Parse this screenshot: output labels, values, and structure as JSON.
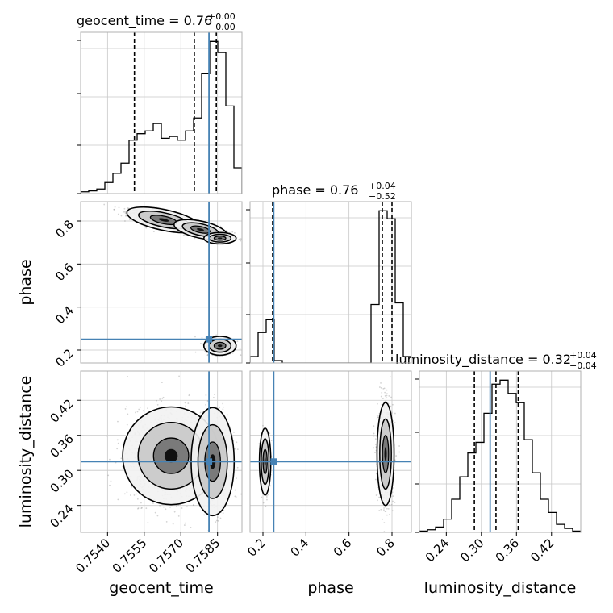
{
  "chart_data": {
    "type": "corner",
    "parameters": [
      "geocent_time",
      "phase",
      "luminosity_distance"
    ],
    "axis_labels": {
      "geocent_time": "geocent_time",
      "phase": "phase",
      "luminosity_distance": "luminosity_distance"
    },
    "colors": {
      "truth": "#4682b4",
      "hist": "#000000",
      "points": "#808080"
    },
    "titles": [
      {
        "param": "geocent_time",
        "text": "geocent_time = 0.76",
        "sup": "+0.00",
        "sub": "−0.00"
      },
      {
        "param": "phase",
        "text": "phase = 0.76",
        "sup": "+0.04",
        "sub": "−0.52"
      },
      {
        "param": "luminosity_distance",
        "text": "luminosity_distance = 0.32",
        "sup": "+0.04",
        "sub": "−0.04"
      }
    ],
    "ranges": {
      "geocent_time": [
        0.7529,
        0.7595
      ],
      "phase": [
        0.14,
        0.89
      ],
      "luminosity_distance": [
        0.194,
        0.47
      ]
    },
    "ticks": {
      "geocent_time": [
        0.754,
        0.7555,
        0.757,
        0.7585
      ],
      "phase": [
        0.2,
        0.4,
        0.6,
        0.8
      ],
      "luminosity_distance": [
        0.24,
        0.3,
        0.36,
        0.42
      ]
    },
    "tick_labels": {
      "geocent_time": [
        "0.7540",
        "0.7555",
        "0.7570",
        "0.7585"
      ],
      "phase": [
        "0.2",
        "0.4",
        "0.6",
        "0.8"
      ],
      "luminosity_distance": [
        "0.24",
        "0.30",
        "0.36",
        "0.42"
      ]
    },
    "truths": {
      "geocent_time": 0.75815,
      "phase": 0.25,
      "luminosity_distance": 0.315
    },
    "quantiles": {
      "geocent_time": [
        0.7551,
        0.75755,
        0.75845
      ],
      "phase": [
        0.245,
        0.755,
        0.8
      ],
      "luminosity_distance": [
        0.288,
        0.325,
        0.363
      ]
    },
    "histograms": {
      "geocent_time": {
        "edges": [
          0.7529,
          0.75323,
          0.75356,
          0.75389,
          0.75422,
          0.75455,
          0.75488,
          0.75521,
          0.75554,
          0.75587,
          0.7562,
          0.75653,
          0.75686,
          0.75719,
          0.75752,
          0.75785,
          0.75818,
          0.75851,
          0.75884,
          0.75917,
          0.7595
        ],
        "counts": [
          2,
          3,
          5,
          12,
          22,
          33,
          58,
          65,
          68,
          76,
          60,
          62,
          58,
          68,
          82,
          130,
          165,
          153,
          95,
          28
        ]
      },
      "phase": {
        "edges": [
          0.14,
          0.1775,
          0.215,
          0.2525,
          0.29,
          0.3275,
          0.365,
          0.4025,
          0.44,
          0.4775,
          0.515,
          0.5525,
          0.59,
          0.6275,
          0.665,
          0.7025,
          0.74,
          0.7775,
          0.815,
          0.8525,
          0.89
        ],
        "counts": [
          8,
          38,
          54,
          3,
          0,
          0,
          0,
          0,
          0,
          0,
          0,
          0,
          0,
          0,
          0,
          73,
          190,
          180,
          75,
          8
        ]
      },
      "luminosity_distance": {
        "edges": [
          0.194,
          0.2078,
          0.2216,
          0.2354,
          0.2492,
          0.263,
          0.2768,
          0.2906,
          0.3044,
          0.3182,
          0.332,
          0.3458,
          0.3596,
          0.3734,
          0.3872,
          0.401,
          0.4148,
          0.4286,
          0.4424,
          0.4562,
          0.47
        ],
        "counts": [
          1,
          2,
          4,
          10,
          25,
          42,
          60,
          68,
          90,
          112,
          115,
          105,
          98,
          70,
          45,
          25,
          15,
          6,
          3,
          1
        ]
      }
    }
  }
}
